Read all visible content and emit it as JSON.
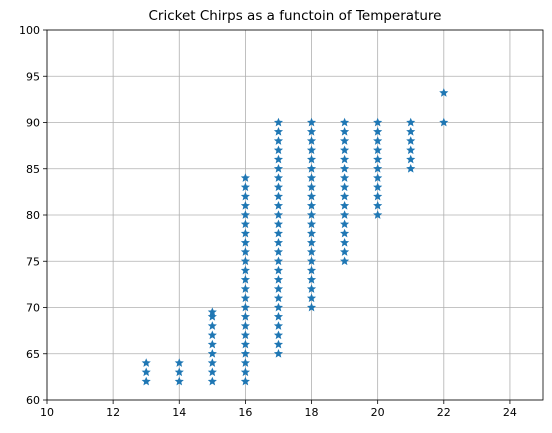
{
  "chart_data": {
    "type": "scatter",
    "title": "Cricket Chirps as a functoin of Temperature",
    "color": "#1f77b4",
    "marker": "star",
    "grid": true,
    "xlim": [
      10,
      25
    ],
    "xticks": [
      10,
      12,
      14,
      16,
      18,
      20,
      22,
      24
    ],
    "ylim": [
      60,
      100
    ],
    "yticks": [
      60,
      65,
      70,
      75,
      80,
      85,
      90,
      95,
      100
    ],
    "x": [
      13,
      13,
      13,
      14,
      14,
      14,
      15,
      15,
      15,
      15,
      15,
      15,
      15,
      15,
      15,
      16,
      16,
      16,
      16,
      16,
      16,
      16,
      16,
      16,
      16,
      16,
      16,
      16,
      16,
      16,
      16,
      16,
      16,
      16,
      16,
      16,
      16,
      16,
      17,
      17,
      17,
      17,
      17,
      17,
      17,
      17,
      17,
      17,
      17,
      17,
      17,
      17,
      17,
      17,
      17,
      17,
      17,
      17,
      17,
      17,
      17,
      17,
      17,
      17,
      18,
      18,
      18,
      18,
      18,
      18,
      18,
      18,
      18,
      18,
      18,
      18,
      18,
      18,
      18,
      18,
      18,
      18,
      18,
      18,
      18,
      19,
      19,
      19,
      19,
      19,
      19,
      19,
      19,
      19,
      19,
      19,
      19,
      19,
      19,
      19,
      19,
      20,
      20,
      20,
      20,
      20,
      20,
      20,
      20,
      20,
      20,
      20,
      21,
      21,
      21,
      21,
      21,
      21,
      22,
      22
    ],
    "y": [
      62,
      63,
      64,
      62,
      63,
      64,
      62,
      63,
      64,
      65,
      66,
      67,
      68,
      69,
      69.5,
      62,
      63,
      64,
      65,
      66,
      67,
      68,
      69,
      70,
      71,
      72,
      73,
      74,
      75,
      76,
      77,
      78,
      79,
      80,
      81,
      82,
      83,
      84,
      65,
      66,
      67,
      68,
      69,
      70,
      71,
      72,
      73,
      74,
      75,
      76,
      77,
      78,
      79,
      80,
      81,
      82,
      83,
      84,
      85,
      86,
      87,
      88,
      89,
      90,
      70,
      71,
      72,
      73,
      74,
      75,
      76,
      77,
      78,
      79,
      80,
      81,
      82,
      83,
      84,
      85,
      86,
      87,
      88,
      89,
      90,
      75,
      76,
      77,
      78,
      79,
      80,
      81,
      82,
      83,
      84,
      85,
      86,
      87,
      88,
      89,
      90,
      80,
      81,
      82,
      83,
      84,
      85,
      86,
      87,
      88,
      89,
      90,
      85,
      86,
      87,
      88,
      89,
      90,
      90,
      93.2
    ]
  }
}
